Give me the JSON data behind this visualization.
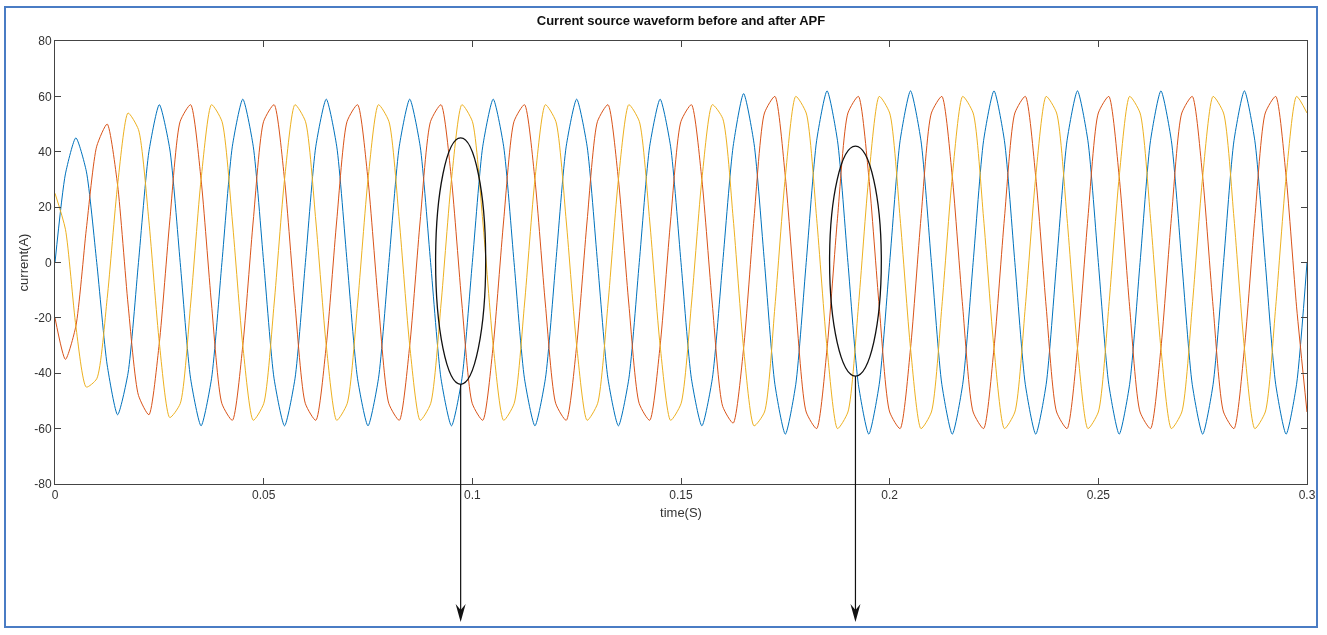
{
  "chart_data": {
    "type": "line",
    "title": "Current source waveform before and after APF",
    "xlabel": "time(S)",
    "ylabel": "current(A)",
    "x": [
      0,
      0.0025,
      0.005,
      0.0075,
      0.01,
      0.0125,
      0.015,
      0.0175,
      0.02,
      0.0225,
      0.025,
      0.0275,
      0.03,
      0.0325,
      0.035,
      0.0375,
      0.04,
      0.0425,
      0.045,
      0.0475,
      0.05,
      0.0525,
      0.055,
      0.0575,
      0.06,
      0.0625,
      0.065,
      0.0675,
      0.07,
      0.0725,
      0.075,
      0.0775,
      0.08,
      0.0825,
      0.085,
      0.0875,
      0.09,
      0.0925,
      0.095,
      0.0975,
      0.1,
      0.1025,
      0.105,
      0.1075,
      0.11,
      0.1125,
      0.115,
      0.1175,
      0.12,
      0.1225,
      0.125,
      0.1275,
      0.13,
      0.1325,
      0.135,
      0.1375,
      0.14,
      0.1425,
      0.145,
      0.1475,
      0.15,
      0.1525,
      0.155,
      0.1575,
      0.16,
      0.1625,
      0.165,
      0.1675,
      0.17,
      0.1725,
      0.175,
      0.1775,
      0.18,
      0.1825,
      0.185,
      0.1875,
      0.19,
      0.1925,
      0.195,
      0.1975,
      0.2,
      0.2025,
      0.205,
      0.2075,
      0.21,
      0.2125,
      0.215,
      0.2175,
      0.22,
      0.2225,
      0.225,
      0.2275,
      0.23,
      0.2325,
      0.235,
      0.2375,
      0.24,
      0.2425,
      0.245,
      0.2475,
      0.25,
      0.2525,
      0.255,
      0.2575,
      0.26,
      0.2625,
      0.265,
      0.2675,
      0.27,
      0.2725,
      0.275,
      0.2775,
      0.28,
      0.2825,
      0.285,
      0.2875,
      0.29,
      0.2925,
      0.295,
      0.2975,
      0.3
    ],
    "series": [
      {
        "color": "#0072bd",
        "values": [
          0,
          32,
          45,
          33,
          0,
          -37,
          -55,
          -40,
          0,
          40,
          57,
          41,
          0,
          -42,
          -59,
          -42,
          0,
          42,
          59,
          42,
          0,
          -42,
          -59,
          -42,
          0,
          42,
          59,
          42,
          0,
          -42,
          -59,
          -42,
          0,
          42,
          59,
          42,
          0,
          -42,
          -59,
          -42,
          0,
          42,
          59,
          42,
          0,
          -42,
          -59,
          -42,
          0,
          42,
          59,
          42,
          0,
          -42,
          -59,
          -42,
          0,
          42,
          59,
          42,
          0,
          -42,
          -59,
          -42,
          0,
          42,
          61,
          43,
          0,
          -44,
          -62,
          -44,
          0,
          44,
          62,
          44,
          0,
          -44,
          -62,
          -44,
          0,
          44,
          62,
          44,
          0,
          -44,
          -62,
          -44,
          0,
          44,
          62,
          44,
          0,
          -44,
          -62,
          -44,
          0,
          44,
          62,
          44,
          0,
          -44,
          -62,
          -44,
          0,
          44,
          62,
          44,
          0,
          -44,
          -62,
          -44,
          0,
          44,
          62,
          44,
          0,
          -44,
          -62,
          -44,
          0
        ]
      },
      {
        "color": "#d95319",
        "values": [
          -20,
          -35,
          -23,
          12,
          42,
          50,
          28,
          -15,
          -48,
          -55,
          -29,
          15,
          51,
          57,
          30,
          -15,
          -51,
          -57,
          -30,
          15,
          51,
          57,
          30,
          -15,
          -51,
          -57,
          -30,
          15,
          51,
          57,
          30,
          -15,
          -51,
          -57,
          -30,
          15,
          51,
          57,
          30,
          -15,
          -51,
          -57,
          -30,
          15,
          51,
          57,
          30,
          -15,
          -51,
          -57,
          -30,
          15,
          51,
          57,
          30,
          -15,
          -51,
          -57,
          -30,
          15,
          51,
          57,
          30,
          -15,
          -52,
          -58,
          -31,
          16,
          54,
          60,
          31,
          -16,
          -54,
          -60,
          -31,
          16,
          54,
          60,
          31,
          -16,
          -54,
          -60,
          -31,
          16,
          54,
          60,
          31,
          -16,
          -54,
          -60,
          -31,
          16,
          54,
          60,
          31,
          -16,
          -54,
          -60,
          -31,
          16,
          54,
          60,
          31,
          -16,
          -54,
          -60,
          -31,
          16,
          54,
          60,
          31,
          -16,
          -54,
          -60,
          -31,
          16,
          54,
          60,
          31,
          -16,
          -54
        ]
      },
      {
        "color": "#edb120",
        "values": [
          25,
          12,
          -23,
          -45,
          -42,
          -13,
          28,
          54,
          48,
          15,
          -29,
          -56,
          -51,
          -15,
          30,
          57,
          51,
          15,
          -30,
          -57,
          -51,
          -15,
          30,
          57,
          51,
          15,
          -30,
          -57,
          -51,
          -15,
          30,
          57,
          51,
          15,
          -30,
          -57,
          -51,
          -15,
          30,
          57,
          51,
          15,
          -30,
          -57,
          -51,
          -15,
          30,
          57,
          51,
          15,
          -30,
          -57,
          -51,
          -15,
          30,
          57,
          51,
          15,
          -30,
          -57,
          -51,
          -15,
          30,
          57,
          52,
          16,
          -31,
          -59,
          -54,
          -16,
          31,
          60,
          54,
          16,
          -31,
          -60,
          -54,
          -16,
          31,
          60,
          54,
          16,
          -31,
          -60,
          -54,
          -16,
          31,
          60,
          54,
          16,
          -31,
          -60,
          -54,
          -16,
          31,
          60,
          54,
          16,
          -31,
          -60,
          -54,
          -16,
          31,
          60,
          54,
          16,
          -31,
          -60,
          -54,
          -16,
          31,
          60,
          54,
          16,
          -31,
          -60,
          -54,
          -16,
          31,
          60,
          54
        ]
      }
    ],
    "xlim": [
      0,
      0.3
    ],
    "xticks": [
      0,
      0.05,
      0.1,
      0.15,
      0.2,
      0.25,
      0.3
    ],
    "ylim": [
      -80,
      80
    ],
    "yticks": [
      -80,
      -60,
      -40,
      -20,
      0,
      20,
      40,
      60,
      80
    ],
    "marker": "none",
    "line_style": "solid"
  }
}
